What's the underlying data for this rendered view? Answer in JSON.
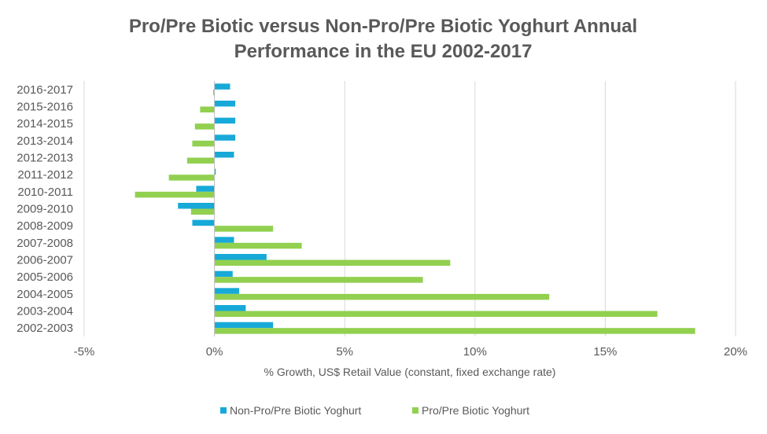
{
  "chart_data": {
    "type": "bar",
    "orientation": "horizontal",
    "title": [
      "Pro/Pre Biotic versus Non-Pro/Pre Biotic Yoghurt Annual",
      "Performance in the EU 2002-2017"
    ],
    "xlabel": "% Growth, US$ Retail Value (constant, fixed exchange rate)",
    "ylabel": "",
    "xlim": [
      -5,
      20
    ],
    "x_ticks": [
      -5,
      0,
      5,
      10,
      15,
      20
    ],
    "x_tick_labels": [
      "-5%",
      "0%",
      "5%",
      "10%",
      "15%",
      "20%"
    ],
    "grid": "vertical",
    "legend_position": "bottom",
    "categories": [
      "2016-2017",
      "2015-2016",
      "2014-2015",
      "2013-2014",
      "2012-2013",
      "2011-2012",
      "2010-2011",
      "2009-2010",
      "2008-2009",
      "2007-2008",
      "2006-2007",
      "2005-2006",
      "2004-2005",
      "2003-2004",
      "2002-2003"
    ],
    "series": [
      {
        "name": "Non-Pro/Pre Biotic Yoghurt",
        "color": "#17A9D8",
        "values": [
          0.6,
          0.8,
          0.8,
          0.8,
          0.75,
          0.05,
          -0.7,
          -1.4,
          -0.85,
          0.75,
          2.0,
          0.7,
          0.95,
          1.2,
          2.25
        ]
      },
      {
        "name": "Pro/Pre Biotic Yoghurt",
        "color": "#92D050",
        "values": [
          -0.05,
          -0.55,
          -0.75,
          -0.85,
          -1.05,
          -1.75,
          -3.05,
          -0.9,
          2.25,
          3.35,
          9.05,
          8.0,
          12.85,
          17.0,
          18.45
        ]
      }
    ]
  }
}
